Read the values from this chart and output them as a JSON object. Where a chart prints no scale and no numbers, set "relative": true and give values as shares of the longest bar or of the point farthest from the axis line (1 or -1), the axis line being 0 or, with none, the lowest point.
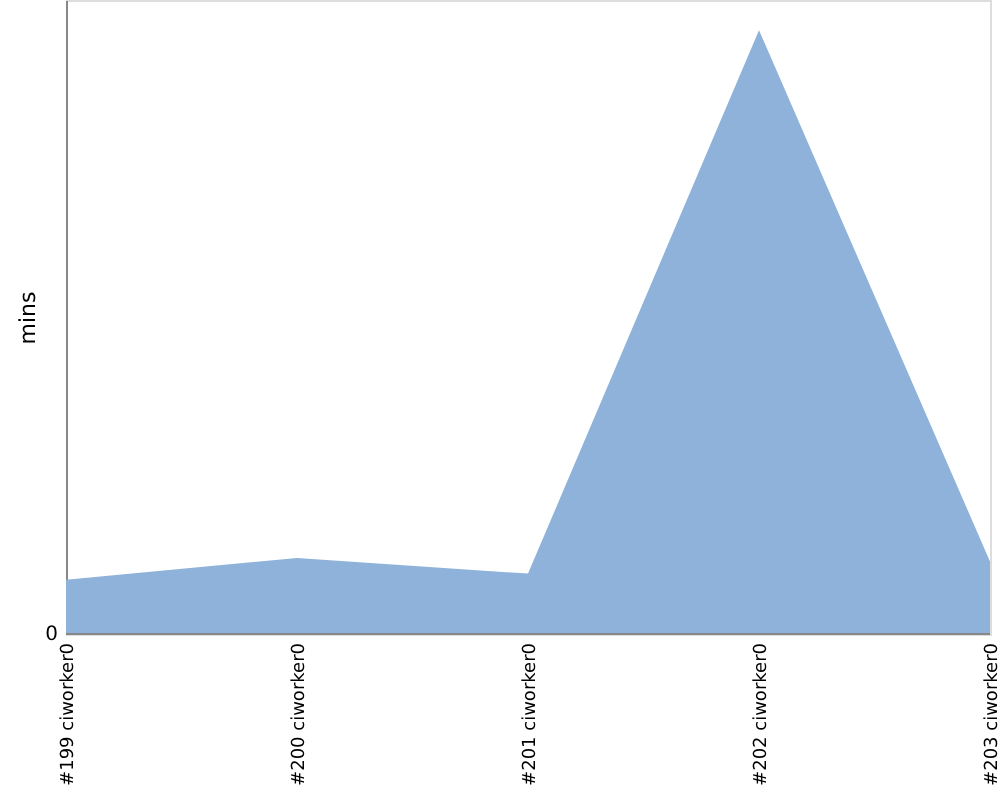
{
  "chart_data": {
    "type": "area",
    "relative": true,
    "ylabel": "mins",
    "categories": [
      "#199 ciworker0",
      "#200 ciworker0",
      "#201 ciworker0",
      "#202 ciworker0",
      "#203 ciworker0"
    ],
    "series": [
      {
        "color": "#8fb2da",
        "values": [
          0.09,
          0.126,
          0.1,
          1,
          0.12
        ]
      }
    ],
    "annotations": [
      "0"
    ]
  }
}
